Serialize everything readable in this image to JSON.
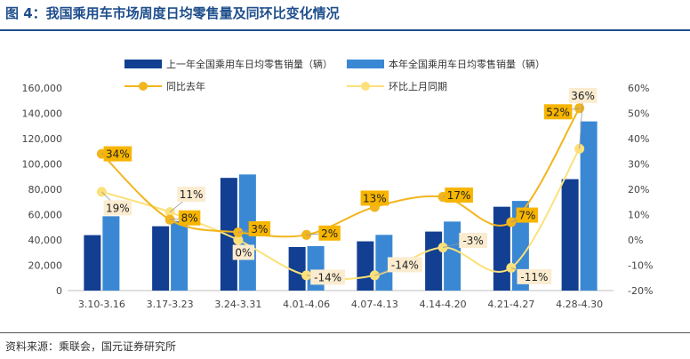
{
  "header": {
    "title": "图 4：我国乘用车市场周度日均零售量及同环比变化情况"
  },
  "footer": {
    "source": "资料来源：乘联会，国元证券研究所"
  },
  "colors": {
    "bar_last_year": "#123f91",
    "bar_this_year": "#3a88d4",
    "line_yoy": "#f2b51c",
    "line_mom": "#fce17a",
    "label_box_yoy": "#f7b500",
    "label_box_mom": "#fbecd0",
    "axis_text": "#444444",
    "title": "#1f4e8c"
  },
  "chart_data": {
    "type": "bar",
    "title": "我国乘用车市场周度日均零售量及同环比变化情况",
    "categories": [
      "3.10-3.16",
      "3.17-3.23",
      "3.24-3.31",
      "4.01-4.06",
      "4.07-4.13",
      "4.14-4.20",
      "4.21-4.27",
      "4.28-4.30"
    ],
    "series": [
      {
        "name": "上一年全国乘用车日均零售销量（辆）",
        "type": "bar",
        "axis": "left",
        "values": [
          43800,
          50800,
          89000,
          34400,
          38900,
          46600,
          66200,
          88000
        ]
      },
      {
        "name": "本年全国乘用车日均零售销量（辆）",
        "type": "bar",
        "axis": "left",
        "values": [
          58700,
          54900,
          91700,
          35100,
          44000,
          54500,
          70800,
          133600
        ]
      },
      {
        "name": "同比去年",
        "type": "line",
        "axis": "right",
        "values": [
          34,
          8,
          3,
          2,
          13,
          17,
          7,
          52
        ],
        "labels": [
          "34%",
          "8%",
          "3%",
          "2%",
          "13%",
          "17%",
          "7%",
          "52%"
        ]
      },
      {
        "name": "环比上月同期",
        "type": "line",
        "axis": "right",
        "values": [
          19,
          11,
          0,
          -14,
          -14,
          -3,
          -11,
          36
        ],
        "labels": [
          "19%",
          "11%",
          "0%",
          "-14%",
          "-14%",
          "-3%",
          "-11%",
          "36%"
        ]
      }
    ],
    "y_left": {
      "min": 0,
      "max": 160000,
      "step": 20000,
      "ticks": [
        "0",
        "20,000",
        "40,000",
        "60,000",
        "80,000",
        "100,000",
        "120,000",
        "140,000",
        "160,000"
      ]
    },
    "y_right": {
      "min": -20,
      "max": 60,
      "step": 10,
      "ticks": [
        "-20%",
        "-10%",
        "0%",
        "10%",
        "20%",
        "30%",
        "40%",
        "50%",
        "60%"
      ]
    },
    "legend_position": "top",
    "grid": false
  }
}
